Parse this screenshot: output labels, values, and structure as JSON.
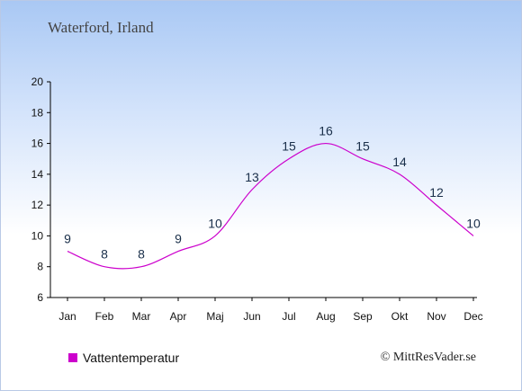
{
  "title": "Waterford, Irland",
  "credit": "© MittResVader.se",
  "colors": {
    "series": "#cc00cc",
    "axis": "#000000"
  },
  "chart_data": {
    "type": "line",
    "title": "Waterford, Irland",
    "categories": [
      "Jan",
      "Feb",
      "Mar",
      "Apr",
      "Maj",
      "Jun",
      "Jul",
      "Aug",
      "Sep",
      "Okt",
      "Nov",
      "Dec"
    ],
    "series": [
      {
        "name": "Vattentemperatur",
        "values": [
          9,
          8,
          8,
          9,
          10,
          13,
          15,
          16,
          15,
          14,
          12,
          10
        ]
      }
    ],
    "ylim": [
      6,
      20
    ],
    "yticks": [
      6,
      8,
      10,
      12,
      14,
      16,
      18,
      20
    ],
    "grid": false,
    "legend": "bottom-left"
  }
}
